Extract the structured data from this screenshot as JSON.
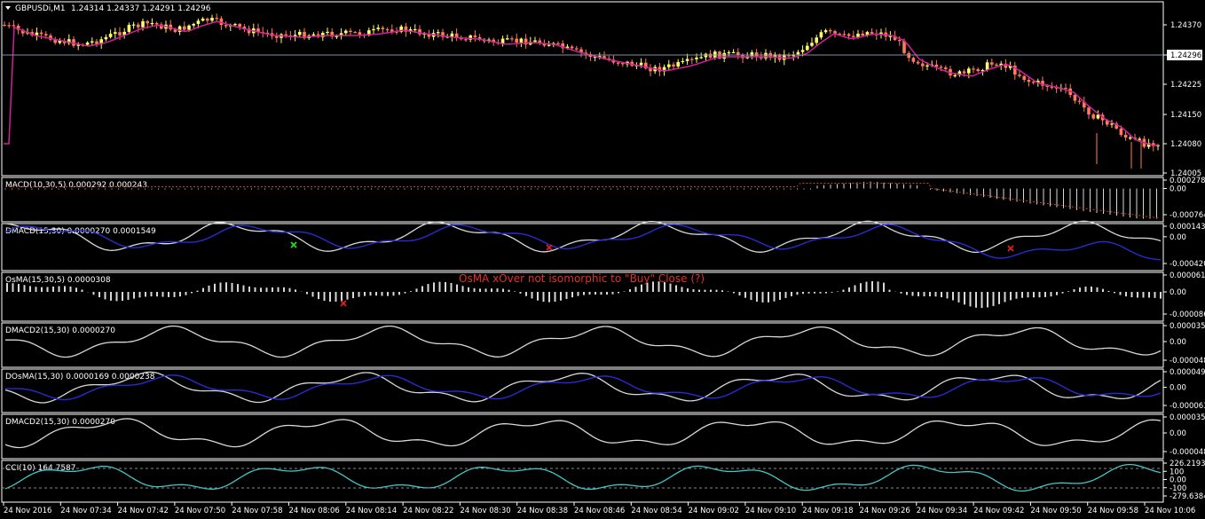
{
  "main_chart": {
    "title": "GBPUSDi,M1",
    "ohlc_text": "1.24314 1.24337 1.24291 1.24296",
    "price_ticks": [
      "1.24370",
      "1.24296",
      "1.24225",
      "1.24150",
      "1.24080",
      "1.24005"
    ],
    "current_price": "1.24296"
  },
  "panels": [
    {
      "id": "macd",
      "label": "MACD(10,30,5) 0.000292 0.000243",
      "ticks": [
        "0.000278",
        "0.00",
        "-0.000764"
      ]
    },
    {
      "id": "dmacd",
      "label": "DMACD(15,30) 0.0000270 0.0001549",
      "ticks": [
        "0.000143",
        "0.00",
        "-0.000420"
      ]
    },
    {
      "id": "osma",
      "label": "OsMA(15,30,5) 0.0000308",
      "ticks": [
        "0.000061",
        "0.00",
        "-0.000086"
      ]
    },
    {
      "id": "dmacd2a",
      "label": "DMACD2(15,30) 0.0000270",
      "ticks": [
        "0.000035",
        "0.00",
        "-0.000048"
      ]
    },
    {
      "id": "dosma",
      "label": "DOsMA(15,30) 0.0000169 0.0000238",
      "ticks": [
        "0.000049",
        "0.00",
        "-0.000063"
      ]
    },
    {
      "id": "dmacd2b",
      "label": "DMACD2(15,30) 0.0000270",
      "ticks": [
        "0.000035",
        "0.00",
        "-0.000048"
      ]
    },
    {
      "id": "cci",
      "label": "CCI(10) 164.7587",
      "ticks": [
        "226.2193",
        "100",
        "0.00",
        "-100",
        "-279.6384"
      ]
    }
  ],
  "annotation": "OsMA xOver not isomorphic to \"Buy\" Close (?)",
  "time_labels": [
    "24 Nov 2016",
    "24 Nov 07:34",
    "24 Nov 07:42",
    "24 Nov 07:50",
    "24 Nov 07:58",
    "24 Nov 08:06",
    "24 Nov 08:14",
    "24 Nov 08:22",
    "24 Nov 08:30",
    "24 Nov 08:38",
    "24 Nov 08:46",
    "24 Nov 08:54",
    "24 Nov 09:02",
    "24 Nov 09:10",
    "24 Nov 09:18",
    "24 Nov 09:26",
    "24 Nov 09:34",
    "24 Nov 09:42",
    "24 Nov 09:50",
    "24 Nov 09:58",
    "24 Nov 10:06"
  ],
  "colors": {
    "bull_candle": "#ffff66",
    "bear_candle": "#ff7a59",
    "ma_line": "#d0209a",
    "signal_line": "#2a2ad0",
    "indicator_line": "#d8d8d8",
    "cci_line": "#40c8c8",
    "grid": "#888888",
    "marker_buy": "#20e020",
    "marker_sell": "#e02020"
  }
}
